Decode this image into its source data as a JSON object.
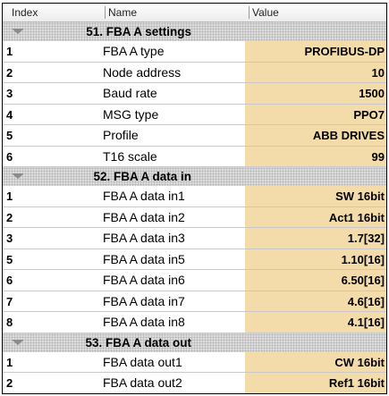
{
  "columns": {
    "index": "Index",
    "name": "Name",
    "value": "Value"
  },
  "colors": {
    "value_bg": "#f3dca9",
    "group_bg": "#dcdcdc"
  },
  "groups": [
    {
      "title": "51. FBA A settings",
      "rows": [
        {
          "index": "1",
          "name": "FBA A type",
          "value": "PROFIBUS-DP"
        },
        {
          "index": "2",
          "name": "Node address",
          "value": "10"
        },
        {
          "index": "3",
          "name": "Baud rate",
          "value": "1500"
        },
        {
          "index": "4",
          "name": "MSG type",
          "value": "PPO7"
        },
        {
          "index": "5",
          "name": "Profile",
          "value": "ABB DRIVES"
        },
        {
          "index": "6",
          "name": "T16 scale",
          "value": "99"
        }
      ]
    },
    {
      "title": "52. FBA A data in",
      "rows": [
        {
          "index": "1",
          "name": "FBA A data in1",
          "value": "SW 16bit"
        },
        {
          "index": "2",
          "name": "FBA A data in2",
          "value": "Act1 16bit"
        },
        {
          "index": "3",
          "name": "FBA A data in3",
          "value": "1.7[32]"
        },
        {
          "index": "5",
          "name": "FBA A data in5",
          "value": "1.10[16]"
        },
        {
          "index": "6",
          "name": "FBA A data in6",
          "value": "6.50[16]"
        },
        {
          "index": "7",
          "name": "FBA A data in7",
          "value": "4.6[16]"
        },
        {
          "index": "8",
          "name": "FBA A data in8",
          "value": "4.1[16]"
        }
      ]
    },
    {
      "title": "53. FBA A data out",
      "rows": [
        {
          "index": "1",
          "name": "FBA data out1",
          "value": "CW 16bit"
        },
        {
          "index": "2",
          "name": "FBA data out2",
          "value": "Ref1 16bit"
        }
      ]
    }
  ]
}
